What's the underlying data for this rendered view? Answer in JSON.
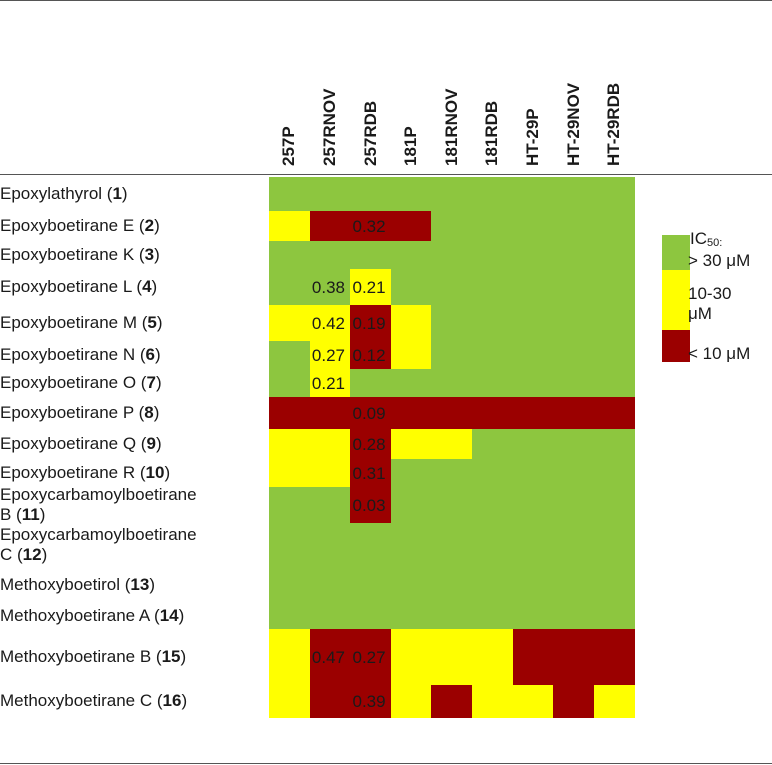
{
  "chart_data": {
    "type": "heatmap",
    "columns": [
      "257P",
      "257RNOV",
      "257RDB",
      "181P",
      "181RNOV",
      "181RDB",
      "HT-29P",
      "HT-29NOV",
      "HT-29RDB"
    ],
    "rows": [
      {
        "label": "Epoxylathyrol (",
        "num": "1",
        "suffix": ")"
      },
      {
        "label": "Epoxyboetirane E (",
        "num": "2",
        "suffix": ")"
      },
      {
        "label": "Epoxyboetirane K (",
        "num": "3",
        "suffix": ")"
      },
      {
        "label": "Epoxyboetirane L (",
        "num": "4",
        "suffix": ")"
      },
      {
        "label": "Epoxyboetirane M (",
        "num": "5",
        "suffix": ")"
      },
      {
        "label": "Epoxyboetirane N (",
        "num": "6",
        "suffix": ")"
      },
      {
        "label": "Epoxyboetirane O (",
        "num": "7",
        "suffix": ")"
      },
      {
        "label": "Epoxyboetirane P (",
        "num": "8",
        "suffix": ")"
      },
      {
        "label": "Epoxyboetirane Q (",
        "num": "9",
        "suffix": ")"
      },
      {
        "label": "Epoxyboetirane R (",
        "num": "10",
        "suffix": ")"
      },
      {
        "label": "Epoxycarbamoylboetirane",
        "label2": "B (",
        "num": "11",
        "suffix": ")"
      },
      {
        "label": "Epoxycarbamoylboetirane",
        "label2": "C (",
        "num": "12",
        "suffix": ")"
      },
      {
        "label": "Methoxyboetirol (",
        "num": "13",
        "suffix": ")"
      },
      {
        "label": "Methoxyboetirane A (",
        "num": "14",
        "suffix": ")"
      },
      {
        "label": "Methoxyboetirane B (",
        "num": "15",
        "suffix": ")"
      },
      {
        "label": "Methoxyboetirane C (",
        "num": "16",
        "suffix": ")"
      }
    ],
    "categories": {
      "G": "> 30 μM",
      "Y": "10-30 μM",
      "R": "< 10 μM"
    },
    "cells": [
      [
        "G",
        "G",
        "G",
        "G",
        "G",
        "G",
        "G",
        "G",
        "G"
      ],
      [
        "Y",
        "R",
        "R",
        "R",
        "G",
        "G",
        "G",
        "G",
        "G"
      ],
      [
        "G",
        "G",
        "G",
        "G",
        "G",
        "G",
        "G",
        "G",
        "G"
      ],
      [
        "G",
        "G",
        "Y",
        "G",
        "G",
        "G",
        "G",
        "G",
        "G"
      ],
      [
        "Y",
        "Y",
        "R",
        "Y",
        "G",
        "G",
        "G",
        "G",
        "G"
      ],
      [
        "G",
        "Y",
        "R",
        "Y",
        "G",
        "G",
        "G",
        "G",
        "G"
      ],
      [
        "G",
        "Y",
        "G",
        "G",
        "G",
        "G",
        "G",
        "G",
        "G"
      ],
      [
        "R",
        "R",
        "R",
        "R",
        "R",
        "R",
        "R",
        "R",
        "R"
      ],
      [
        "Y",
        "Y",
        "R",
        "Y",
        "Y",
        "G",
        "G",
        "G",
        "G"
      ],
      [
        "Y",
        "Y",
        "R",
        "G",
        "G",
        "G",
        "G",
        "G",
        "G"
      ],
      [
        "G",
        "G",
        "R",
        "G",
        "G",
        "G",
        "G",
        "G",
        "G"
      ],
      [
        "G",
        "G",
        "G",
        "G",
        "G",
        "G",
        "G",
        "G",
        "G"
      ],
      [
        "G",
        "G",
        "G",
        "G",
        "G",
        "G",
        "G",
        "G",
        "G"
      ],
      [
        "G",
        "G",
        "G",
        "G",
        "G",
        "G",
        "G",
        "G",
        "G"
      ],
      [
        "Y",
        "R",
        "R",
        "Y",
        "Y",
        "Y",
        "R",
        "R",
        "R"
      ],
      [
        "Y",
        "R",
        "R",
        "Y",
        "R",
        "Y",
        "Y",
        "R",
        "Y"
      ]
    ],
    "annotations": [
      {
        "row": 1,
        "col": 2,
        "text": "0.32"
      },
      {
        "row": 3,
        "col": 1,
        "text": "0.38"
      },
      {
        "row": 3,
        "col": 2,
        "text": "0.21"
      },
      {
        "row": 4,
        "col": 1,
        "text": "0.42"
      },
      {
        "row": 4,
        "col": 2,
        "text": "0.19"
      },
      {
        "row": 5,
        "col": 1,
        "text": "0.27"
      },
      {
        "row": 5,
        "col": 2,
        "text": "0.12"
      },
      {
        "row": 6,
        "col": 1,
        "text": "0.21"
      },
      {
        "row": 7,
        "col": 2,
        "text": "0.09"
      },
      {
        "row": 8,
        "col": 2,
        "text": "0.28"
      },
      {
        "row": 9,
        "col": 2,
        "text": "0.31"
      },
      {
        "row": 10,
        "col": 2,
        "text": "0.03"
      },
      {
        "row": 14,
        "col": 1,
        "text": "0.47"
      },
      {
        "row": 14,
        "col": 2,
        "text": "0.27"
      },
      {
        "row": 15,
        "col": 2,
        "text": "0.39"
      }
    ],
    "legend": {
      "title_main": "IC",
      "title_sub": "50:",
      "entries": [
        {
          "key": "G",
          "text": "> 30 μM"
        },
        {
          "key": "Y",
          "text": "10-30",
          "text2": "μM"
        },
        {
          "key": "R",
          "text": "< 10 μM"
        }
      ],
      "placement": "right"
    },
    "colors": {
      "G": "#8dc63f",
      "Y": "#ffff00",
      "R": "#9b0000"
    }
  }
}
